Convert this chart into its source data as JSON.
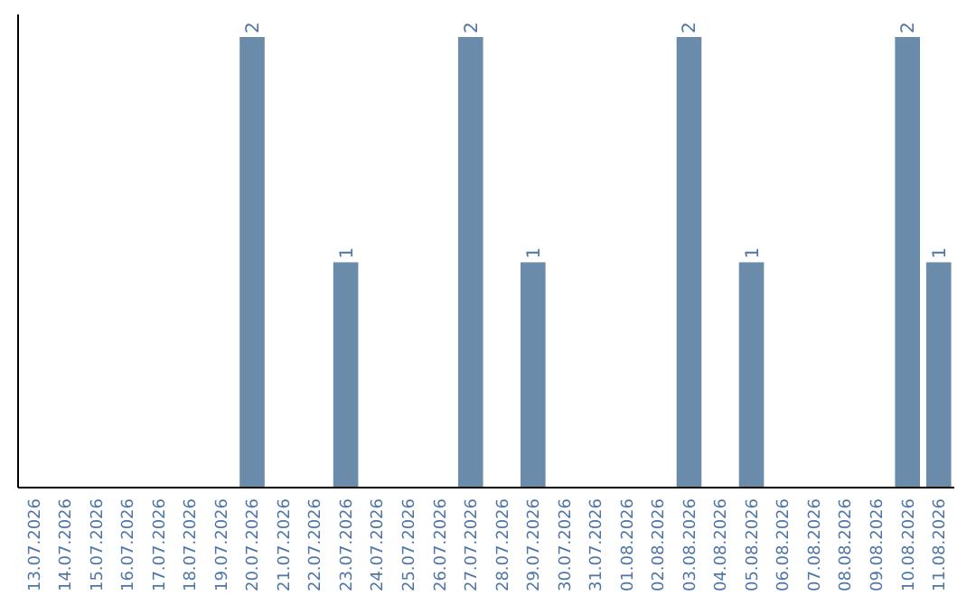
{
  "chart_data": {
    "type": "bar",
    "categories": [
      "13.07.2026",
      "14.07.2026",
      "15.07.2026",
      "16.07.2026",
      "17.07.2026",
      "18.07.2026",
      "19.07.2026",
      "20.07.2026",
      "21.07.2026",
      "22.07.2026",
      "23.07.2026",
      "24.07.2026",
      "25.07.2026",
      "26.07.2026",
      "27.07.2026",
      "28.07.2026",
      "29.07.2026",
      "30.07.2026",
      "31.07.2026",
      "01.08.2026",
      "02.08.2026",
      "03.08.2026",
      "04.08.2026",
      "05.08.2026",
      "06.08.2026",
      "07.08.2026",
      "08.08.2026",
      "09.08.2026",
      "10.08.2026",
      "11.08.2026"
    ],
    "values": [
      0,
      0,
      0,
      0,
      0,
      0,
      0,
      2,
      0,
      0,
      1,
      0,
      0,
      0,
      2,
      0,
      1,
      0,
      0,
      0,
      0,
      2,
      0,
      1,
      0,
      0,
      0,
      0,
      2,
      1
    ],
    "value_labels": [
      null,
      null,
      null,
      null,
      null,
      null,
      null,
      "2",
      null,
      null,
      "1",
      null,
      null,
      null,
      "2",
      null,
      "1",
      null,
      null,
      null,
      null,
      "2",
      null,
      "1",
      null,
      null,
      null,
      null,
      "2",
      "1"
    ],
    "color": "#6a8caa"
  }
}
